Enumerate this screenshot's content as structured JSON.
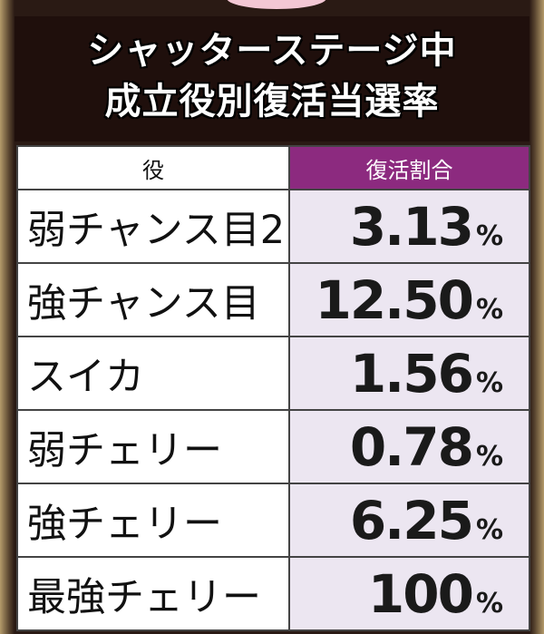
{
  "header": {
    "title_lines": [
      "シャッターステージ中",
      "成立役別復活当選率"
    ]
  },
  "table": {
    "columns": [
      "役",
      "復活割合"
    ],
    "rows": [
      {
        "role": "弱チャンス目2",
        "rate": "3.13",
        "unit": "%"
      },
      {
        "role": "強チャンス目",
        "rate": "12.50",
        "unit": "%"
      },
      {
        "role": "スイカ",
        "rate": "1.56",
        "unit": "%"
      },
      {
        "role": "弱チェリー",
        "rate": "0.78",
        "unit": "%"
      },
      {
        "role": "強チェリー",
        "rate": "6.25",
        "unit": "%"
      },
      {
        "role": "最強チェリー",
        "rate": "100",
        "unit": "%"
      }
    ]
  }
}
